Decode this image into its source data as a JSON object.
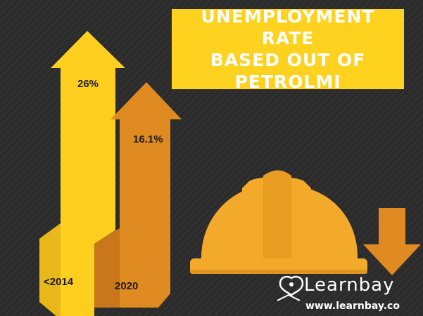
{
  "chart_data": {
    "type": "bar",
    "title": "UNEMPLOYMENT RATE\nBASED OUT OF\nPETROLMI",
    "categories": [
      "<2014",
      "2020"
    ],
    "values": [
      26,
      16.1
    ],
    "value_labels": [
      "26%",
      "16.1%"
    ],
    "unit": "%",
    "colors": [
      "#ffcf1f",
      "#e08a22"
    ]
  },
  "brand": {
    "name": "Learnbay",
    "url": "www.learnbay.co"
  },
  "colors": {
    "background": "#2b2b2b",
    "title_box": "#ffd21f",
    "helmet": "#f3aa2a",
    "down_arrow": "#e08a22"
  },
  "icons": [
    "hard-hat-icon",
    "down-arrow-icon",
    "learnbay-logo-icon"
  ]
}
